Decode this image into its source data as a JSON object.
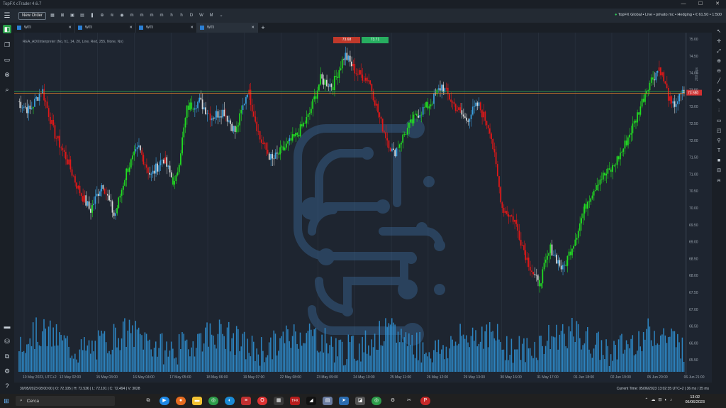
{
  "window": {
    "title": "TopFX cTrader 4.6.7"
  },
  "toolbar": {
    "new_order_label": "New Order",
    "account_text": "TopFX Global • Live • privato mc • Hedging • € 61.50 • 1:500"
  },
  "tabs": [
    {
      "label": "WTI"
    },
    {
      "label": "WTI"
    },
    {
      "label": "WTI"
    },
    {
      "label": "WTI"
    }
  ],
  "chart": {
    "indicator_label": "REA_ADXInterpreter (No, h1, 14, 20, Line, Red, 255, None, No)",
    "bid_label": "73.68",
    "ask_label": "73.71",
    "current_price_tag": "73.680",
    "zoom_label": "200 pips",
    "colors": {
      "up": "#22dd22",
      "down": "#e01818",
      "neutral_up": "#3aa0e0",
      "neutral_down": "#d8d8d8",
      "volume": "#2f8fd0",
      "bid_line": "#d47a2a",
      "ask_line": "#2fa84f"
    }
  },
  "chart_data": {
    "type": "candlestick",
    "price_axis_ticks": [
      "75.00",
      "74.50",
      "74.00",
      "73.50",
      "73.00",
      "72.50",
      "72.00",
      "71.50",
      "71.00",
      "70.50",
      "70.00",
      "69.50",
      "69.00",
      "68.50",
      "68.00",
      "67.50",
      "67.00",
      "66.50",
      "66.00",
      "65.50"
    ],
    "volume_axis_ticks": [
      "66.50",
      "66.00",
      "65.50"
    ],
    "time_axis_ticks": [
      "10 May 2023, UTC+2",
      "12 May 02:00",
      "15 May 03:00",
      "16 May 04:00",
      "17 May 05:00",
      "18 May 06:00",
      "19 May 07:00",
      "22 May 08:00",
      "23 May 09:00",
      "24 May 10:00",
      "25 May 11:00",
      "26 May 12:00",
      "29 May 13:00",
      "30 May 16:00",
      "31 May 17:00",
      "01 Jun 18:00",
      "02 Jun 19:00",
      "05 Jun 20:00",
      "06 Jun 21:00"
    ],
    "price_range": [
      65.2,
      75.2
    ],
    "key_points": [
      73.0,
      72.7,
      73.4,
      72.0,
      71.2,
      70.2,
      69.5,
      70.4,
      69.3,
      70.8,
      71.5,
      70.6,
      71.2,
      70.3,
      72.8,
      73.0,
      72.5,
      72.7,
      72.0,
      73.4,
      71.8,
      71.1,
      71.5,
      71.9,
      72.5,
      73.7,
      73.5,
      74.5,
      73.9,
      73.7,
      72.3,
      71.3,
      72.0,
      72.6,
      72.9,
      73.5,
      72.9,
      72.4,
      72.9,
      72.1,
      69.6,
      69.2,
      68.0,
      67.1,
      68.3,
      67.6,
      68.6,
      69.8,
      70.5,
      70.8,
      71.5,
      72.4,
      73.5,
      74.1,
      72.8,
      73.3
    ],
    "grid": true
  },
  "status": {
    "ohlc": "30/05/2023 08:00:00 | O: 72.105 | H: 72.536 | L: 72.191 | C: 72.494 | V: 3028",
    "time_text": "Current Time: 05/06/2023 13:02:35   UTC+2   |  36 ms / 35 ms"
  },
  "taskbar": {
    "search_placeholder": "Cerca",
    "time": "13:02",
    "date": "05/06/2023"
  }
}
